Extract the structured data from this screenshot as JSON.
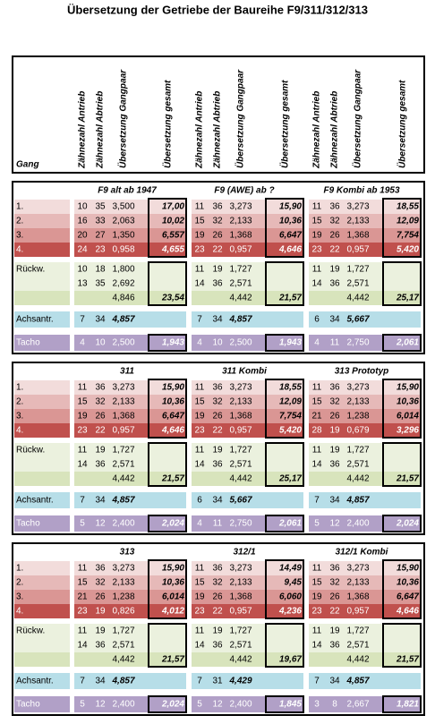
{
  "title": "Übersetzung der Getriebe der Baureihe F9/311/312/313",
  "header": {
    "gang": "Gang",
    "groups": [
      [
        "Zähnezahl Antrieb",
        "Zähnezahl Abtrieb",
        "Übersetzung Gangpaar",
        "Übersetzung gesamt"
      ],
      [
        "Zähnezahl Antrieb",
        "Zähnezahl Abtrieb",
        "Übersetzung Gangpaar",
        "Übersetzung gesamt"
      ],
      [
        "Zähnezahl Antrieb",
        "Zähnezahl Abtrieb",
        "Übersetzung Gangpaar",
        "Übersetzung gesamt"
      ]
    ]
  },
  "blocks": [
    {
      "row_labels": {
        "gears": [
          "1.",
          "2.",
          "3.",
          "4."
        ],
        "reverse": "Rückw.",
        "axle": "Achsantr.",
        "tacho": "Tacho"
      },
      "tables": [
        {
          "title": "F9 alt ab 1947",
          "gears": [
            [
              "10",
              "35",
              "3,500",
              "17,00"
            ],
            [
              "16",
              "33",
              "2,063",
              "10,02"
            ],
            [
              "20",
              "27",
              "1,350",
              "6,557"
            ],
            [
              "24",
              "23",
              "0,958",
              "4,655"
            ]
          ],
          "reverse": [
            [
              "10",
              "18",
              "1,800"
            ],
            [
              "13",
              "35",
              "2,692"
            ]
          ],
          "reverse_ratio": "4,846",
          "reverse_total": "23,54",
          "axle": [
            "7",
            "34",
            "4,857"
          ],
          "tacho": [
            "4",
            "10",
            "2,500",
            "1,943"
          ]
        },
        {
          "title": "F9 (AWE) ab ?",
          "gears": [
            [
              "11",
              "36",
              "3,273",
              "15,90"
            ],
            [
              "15",
              "32",
              "2,133",
              "10,36"
            ],
            [
              "19",
              "26",
              "1,368",
              "6,647"
            ],
            [
              "23",
              "22",
              "0,957",
              "4,646"
            ]
          ],
          "reverse": [
            [
              "11",
              "19",
              "1,727"
            ],
            [
              "14",
              "36",
              "2,571"
            ]
          ],
          "reverse_ratio": "4,442",
          "reverse_total": "21,57",
          "axle": [
            "7",
            "34",
            "4,857"
          ],
          "tacho": [
            "4",
            "10",
            "2,500",
            "1,943"
          ]
        },
        {
          "title": "F9 Kombi ab 1953",
          "gears": [
            [
              "11",
              "36",
              "3,273",
              "18,55"
            ],
            [
              "15",
              "32",
              "2,133",
              "12,09"
            ],
            [
              "19",
              "26",
              "1,368",
              "7,754"
            ],
            [
              "23",
              "22",
              "0,957",
              "5,420"
            ]
          ],
          "reverse": [
            [
              "11",
              "19",
              "1,727"
            ],
            [
              "14",
              "36",
              "2,571"
            ]
          ],
          "reverse_ratio": "4,442",
          "reverse_total": "25,17",
          "axle": [
            "6",
            "34",
            "5,667"
          ],
          "tacho": [
            "4",
            "11",
            "2,750",
            "2,061"
          ]
        }
      ]
    },
    {
      "row_labels": {
        "gears": [
          "1.",
          "2.",
          "3.",
          "4."
        ],
        "reverse": "Rückw.",
        "axle": "Achsantr.",
        "tacho": "Tacho"
      },
      "tables": [
        {
          "title": "311",
          "gears": [
            [
              "11",
              "36",
              "3,273",
              "15,90"
            ],
            [
              "15",
              "32",
              "2,133",
              "10,36"
            ],
            [
              "19",
              "26",
              "1,368",
              "6,647"
            ],
            [
              "23",
              "22",
              "0,957",
              "4,646"
            ]
          ],
          "reverse": [
            [
              "11",
              "19",
              "1,727"
            ],
            [
              "14",
              "36",
              "2,571"
            ]
          ],
          "reverse_ratio": "4,442",
          "reverse_total": "21,57",
          "axle": [
            "7",
            "34",
            "4,857"
          ],
          "tacho": [
            "5",
            "12",
            "2,400",
            "2,024"
          ]
        },
        {
          "title": "311 Kombi",
          "gears": [
            [
              "11",
              "36",
              "3,273",
              "18,55"
            ],
            [
              "15",
              "32",
              "2,133",
              "12,09"
            ],
            [
              "19",
              "26",
              "1,368",
              "7,754"
            ],
            [
              "23",
              "22",
              "0,957",
              "5,420"
            ]
          ],
          "reverse": [
            [
              "11",
              "19",
              "1,727"
            ],
            [
              "14",
              "36",
              "2,571"
            ]
          ],
          "reverse_ratio": "4,442",
          "reverse_total": "25,17",
          "axle": [
            "6",
            "34",
            "5,667"
          ],
          "tacho": [
            "4",
            "11",
            "2,750",
            "2,061"
          ]
        },
        {
          "title": "313 Prototyp",
          "gears": [
            [
              "11",
              "36",
              "3,273",
              "15,90"
            ],
            [
              "15",
              "32",
              "2,133",
              "10,36"
            ],
            [
              "21",
              "26",
              "1,238",
              "6,014"
            ],
            [
              "28",
              "19",
              "0,679",
              "3,296"
            ]
          ],
          "reverse": [
            [
              "11",
              "19",
              "1,727"
            ],
            [
              "14",
              "36",
              "2,571"
            ]
          ],
          "reverse_ratio": "4,442",
          "reverse_total": "21,57",
          "axle": [
            "7",
            "34",
            "4,857"
          ],
          "tacho": [
            "5",
            "12",
            "2,400",
            "2,024"
          ]
        }
      ]
    },
    {
      "row_labels": {
        "gears": [
          "1.",
          "2.",
          "3.",
          "4."
        ],
        "reverse": "Rückw.",
        "axle": "Achsantr.",
        "tacho": "Tacho"
      },
      "tables": [
        {
          "title": "313",
          "gears": [
            [
              "11",
              "36",
              "3,273",
              "15,90"
            ],
            [
              "15",
              "32",
              "2,133",
              "10,36"
            ],
            [
              "21",
              "26",
              "1,238",
              "6,014"
            ],
            [
              "23",
              "19",
              "0,826",
              "4,012"
            ]
          ],
          "reverse": [
            [
              "11",
              "19",
              "1,727"
            ],
            [
              "14",
              "36",
              "2,571"
            ]
          ],
          "reverse_ratio": "4,442",
          "reverse_total": "21,57",
          "axle": [
            "7",
            "34",
            "4,857"
          ],
          "tacho": [
            "5",
            "12",
            "2,400",
            "2,024"
          ]
        },
        {
          "title": "312/1",
          "gears": [
            [
              "11",
              "36",
              "3,273",
              "14,49"
            ],
            [
              "15",
              "32",
              "2,133",
              "9,45"
            ],
            [
              "19",
              "26",
              "1,368",
              "6,060"
            ],
            [
              "23",
              "22",
              "0,957",
              "4,236"
            ]
          ],
          "reverse": [
            [
              "11",
              "19",
              "1,727"
            ],
            [
              "14",
              "36",
              "2,571"
            ]
          ],
          "reverse_ratio": "4,442",
          "reverse_total": "19,67",
          "axle": [
            "7",
            "31",
            "4,429"
          ],
          "tacho": [
            "5",
            "12",
            "2,400",
            "1,845"
          ]
        },
        {
          "title": "312/1 Kombi",
          "gears": [
            [
              "11",
              "36",
              "3,273",
              "15,90"
            ],
            [
              "15",
              "32",
              "2,133",
              "10,36"
            ],
            [
              "19",
              "26",
              "1,368",
              "6,647"
            ],
            [
              "23",
              "22",
              "0,957",
              "4,646"
            ]
          ],
          "reverse": [
            [
              "11",
              "19",
              "1,727"
            ],
            [
              "14",
              "36",
              "2,571"
            ]
          ],
          "reverse_ratio": "4,442",
          "reverse_total": "21,57",
          "axle": [
            "7",
            "34",
            "4,857"
          ],
          "tacho": [
            "3",
            "8",
            "2,667",
            "1,821"
          ]
        }
      ]
    }
  ]
}
